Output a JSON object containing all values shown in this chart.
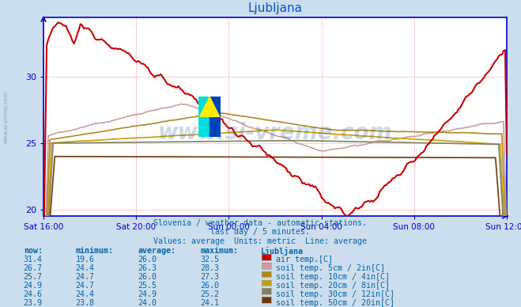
{
  "title": "Ljubljana",
  "title_color": "#0055cc",
  "bg_color": "#ccdded",
  "plot_bg_color": "#ffffff",
  "grid_color": "#ffcccc",
  "axis_color": "#0000cc",
  "text_color": "#0066aa",
  "watermark": "www.si-vreme.com",
  "subtitle_lines": [
    "Slovenia / weather data - automatic stations.",
    "last day / 5 minutes.",
    "Values: average  Units: metric  Line: average"
  ],
  "x_labels": [
    "Sat 16:00",
    "Sat 20:00",
    "Sun 00:00",
    "Sun 04:00",
    "Sun 08:00",
    "Sun 12:00"
  ],
  "n_points": 289,
  "ylim": [
    19.5,
    34.5
  ],
  "yticks": [
    20,
    25,
    30
  ],
  "series_order": [
    "air_temp",
    "soil_5cm",
    "soil_10cm",
    "soil_20cm",
    "soil_30cm",
    "soil_50cm"
  ],
  "series": {
    "air_temp": {
      "color": "#cc0000",
      "linewidth": 1.5
    },
    "soil_5cm": {
      "color": "#c8a098",
      "linewidth": 1.2
    },
    "soil_10cm": {
      "color": "#b08820",
      "linewidth": 1.2
    },
    "soil_20cm": {
      "color": "#c8a000",
      "linewidth": 1.2
    },
    "soil_30cm": {
      "color": "#808060",
      "linewidth": 1.2
    },
    "soil_50cm": {
      "color": "#703808",
      "linewidth": 1.2
    }
  },
  "table_headers": [
    "now:",
    "minimum:",
    "average:",
    "maximum:",
    "Ljubljana"
  ],
  "table_rows": [
    [
      "31.4",
      "19.6",
      "26.0",
      "32.5",
      "air temp.[C]",
      "#cc0000"
    ],
    [
      "26.7",
      "24.4",
      "26.3",
      "28.3",
      "soil temp. 5cm / 2in[C]",
      "#c8a098"
    ],
    [
      "25.7",
      "24.7",
      "26.0",
      "27.3",
      "soil temp. 10cm / 4in[C]",
      "#b08820"
    ],
    [
      "24.9",
      "24.7",
      "25.5",
      "26.0",
      "soil temp. 20cm / 8in[C]",
      "#c8a000"
    ],
    [
      "24.6",
      "24.4",
      "24.9",
      "25.2",
      "soil temp. 30cm / 12in[C]",
      "#808060"
    ],
    [
      "23.9",
      "23.8",
      "24.0",
      "24.1",
      "soil temp. 50cm / 20in[C]",
      "#703808"
    ]
  ],
  "logo": {
    "cyan": "#00dddd",
    "blue": "#0044bb",
    "yellow": "#ffee00"
  }
}
